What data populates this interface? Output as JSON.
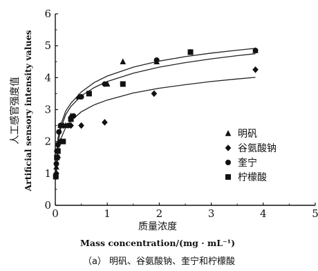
{
  "chart_data": {
    "type": "scatter",
    "title": "",
    "caption": "（a） 明矾、谷氨酸钠、奎宁和柠檬酸",
    "xlabel_cn": "质量浓度",
    "xlabel_en": "Mass concentration/(mg · mL⁻¹)",
    "ylabel_cn": "人工感官强度值",
    "ylabel_en": "Artificial sensory intensity values",
    "xlim": [
      0,
      5
    ],
    "ylim": [
      0,
      6
    ],
    "x_ticks": [
      "0",
      "1",
      "2",
      "3",
      "4",
      "5"
    ],
    "y_ticks": [
      "0",
      "1",
      "2",
      "3",
      "4",
      "5",
      "6"
    ],
    "grid": false,
    "legend_position": "bottom-right",
    "series": [
      {
        "name": "明矾",
        "marker": "triangle",
        "points": [
          [
            0.02,
            1.2
          ],
          [
            0.05,
            1.7
          ],
          [
            0.1,
            2.5
          ],
          [
            0.2,
            2.5
          ],
          [
            0.3,
            2.8
          ],
          [
            0.45,
            3.4
          ],
          [
            0.65,
            3.5
          ],
          [
            1.0,
            3.8
          ],
          [
            1.3,
            4.5
          ],
          [
            1.95,
            4.5
          ],
          [
            2.6,
            4.8
          ],
          [
            3.85,
            4.85
          ]
        ]
      },
      {
        "name": "谷氨酸钠",
        "marker": "diamond",
        "points": [
          [
            0.02,
            1.0
          ],
          [
            0.05,
            1.5
          ],
          [
            0.1,
            2.0
          ],
          [
            0.15,
            2.5
          ],
          [
            0.3,
            2.5
          ],
          [
            0.5,
            2.5
          ],
          [
            0.95,
            2.6
          ],
          [
            1.9,
            3.5
          ],
          [
            3.85,
            4.25
          ]
        ]
      },
      {
        "name": "奎宁",
        "marker": "circle",
        "points": [
          [
            0.01,
            0.9
          ],
          [
            0.02,
            1.3
          ],
          [
            0.03,
            1.7
          ],
          [
            0.05,
            1.9
          ],
          [
            0.07,
            2.3
          ],
          [
            0.1,
            2.5
          ],
          [
            0.25,
            2.5
          ],
          [
            0.35,
            2.8
          ],
          [
            0.5,
            3.4
          ],
          [
            0.95,
            3.8
          ],
          [
            1.95,
            4.55
          ],
          [
            3.85,
            4.85
          ]
        ]
      },
      {
        "name": "柠檬酸",
        "marker": "square",
        "points": [
          [
            0.01,
            0.9
          ],
          [
            0.03,
            1.5
          ],
          [
            0.05,
            1.7
          ],
          [
            0.15,
            2.0
          ],
          [
            0.3,
            2.7
          ],
          [
            0.65,
            3.5
          ],
          [
            1.3,
            3.8
          ],
          [
            2.6,
            4.8
          ]
        ]
      }
    ],
    "fit_curves": [
      {
        "x": [
          0.01,
          0.05,
          0.1,
          0.2,
          0.3,
          0.5,
          0.75,
          1.0,
          1.5,
          2.0,
          2.5,
          3.0,
          3.5,
          3.85
        ],
        "y": [
          0.8,
          1.68,
          2.06,
          2.44,
          2.65,
          2.93,
          3.15,
          3.3,
          3.52,
          3.67,
          3.78,
          3.88,
          3.96,
          4.01
        ]
      },
      {
        "x": [
          0.01,
          0.05,
          0.1,
          0.2,
          0.3,
          0.5,
          0.75,
          1.0,
          1.5,
          2.0,
          2.5,
          3.0,
          3.5,
          3.85
        ],
        "y": [
          0.9,
          1.92,
          2.38,
          2.84,
          3.1,
          3.43,
          3.69,
          3.88,
          4.14,
          4.33,
          4.47,
          4.59,
          4.69,
          4.75
        ]
      },
      {
        "x": [
          0.01,
          0.05,
          0.1,
          0.2,
          0.3,
          0.5,
          0.75,
          1.0,
          1.5,
          2.0,
          2.5,
          3.0,
          3.5,
          3.85
        ],
        "y": [
          1.0,
          2.1,
          2.5,
          2.95,
          3.2,
          3.55,
          3.85,
          4.05,
          4.33,
          4.52,
          4.66,
          4.77,
          4.86,
          4.92
        ]
      }
    ]
  },
  "colors": {
    "ink": "#111111",
    "curve": "#222222"
  }
}
